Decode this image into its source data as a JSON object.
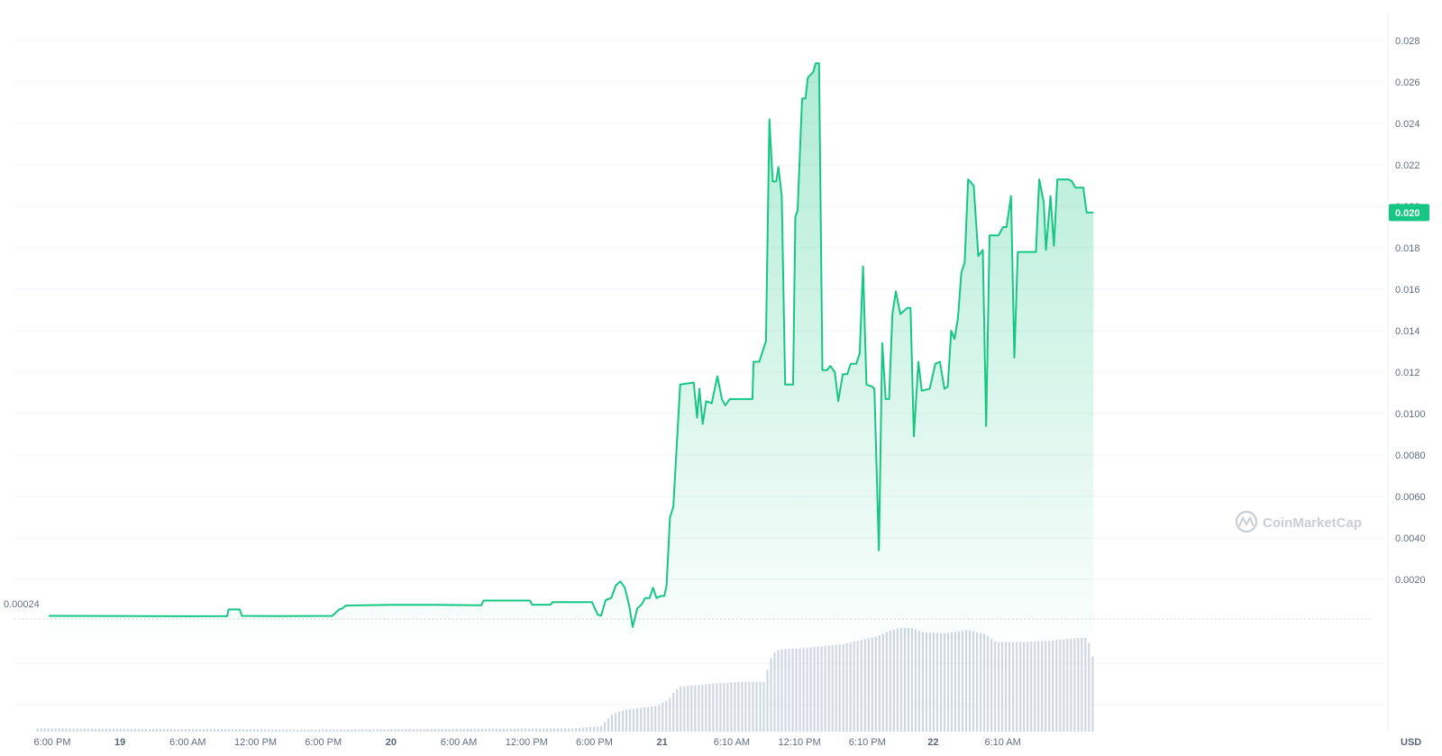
{
  "chart_data": {
    "type": "area",
    "watermark": "CoinMarketCap",
    "currency_label": "USD",
    "baseline_label": "0.00024",
    "current_price_label": "0.020",
    "accent_color": "#16c784",
    "y_ticks": [
      "0.0020",
      "0.0040",
      "0.0060",
      "0.0080",
      "0.0100",
      "0.012",
      "0.014",
      "0.016",
      "0.018",
      "0.020",
      "0.022",
      "0.024",
      "0.026",
      "0.028"
    ],
    "y_tick_values": [
      0.002,
      0.004,
      0.006,
      0.008,
      0.01,
      0.012,
      0.014,
      0.016,
      0.018,
      0.02,
      0.022,
      0.024,
      0.026,
      0.028
    ],
    "ylim": [
      -0.0006,
      0.029
    ],
    "x_ticks": [
      {
        "label": "6:00 PM",
        "t": 0,
        "bold": false
      },
      {
        "label": "19",
        "t": 6,
        "bold": true
      },
      {
        "label": "6:00 AM",
        "t": 12,
        "bold": false
      },
      {
        "label": "12:00 PM",
        "t": 18,
        "bold": false
      },
      {
        "label": "6:00 PM",
        "t": 24,
        "bold": false
      },
      {
        "label": "20",
        "t": 30,
        "bold": true
      },
      {
        "label": "6:00 AM",
        "t": 36,
        "bold": false
      },
      {
        "label": "12:00 PM",
        "t": 42,
        "bold": false
      },
      {
        "label": "6:00 PM",
        "t": 48,
        "bold": false
      },
      {
        "label": "21",
        "t": 54,
        "bold": true
      },
      {
        "label": "6:10 AM",
        "t": 60.17,
        "bold": false
      },
      {
        "label": "12:10 PM",
        "t": 66.17,
        "bold": false
      },
      {
        "label": "6:10 PM",
        "t": 72.17,
        "bold": false
      },
      {
        "label": "22",
        "t": 78,
        "bold": true
      },
      {
        "label": "6:10 AM",
        "t": 84.17,
        "bold": false
      }
    ],
    "x_range_hours": [
      -1.2,
      87.55
    ],
    "price_series": [
      [
        -0.3,
        0.00024
      ],
      [
        8,
        0.00023
      ],
      [
        12,
        0.00022
      ],
      [
        15.5,
        0.00023
      ],
      [
        15.6,
        0.00055
      ],
      [
        16.6,
        0.00055
      ],
      [
        16.8,
        0.00024
      ],
      [
        20,
        0.00023
      ],
      [
        24.8,
        0.00024
      ],
      [
        25.4,
        0.00055
      ],
      [
        25.7,
        0.0006
      ],
      [
        26,
        0.00074
      ],
      [
        30,
        0.00077
      ],
      [
        34,
        0.00077
      ],
      [
        38,
        0.00075
      ],
      [
        38.2,
        0.00098
      ],
      [
        42.3,
        0.00098
      ],
      [
        42.5,
        0.00078
      ],
      [
        44.1,
        0.00078
      ],
      [
        44.3,
        0.0009
      ],
      [
        47.8,
        0.0009
      ],
      [
        48.3,
        0.0003
      ],
      [
        48.6,
        0.00025
      ],
      [
        49,
        0.001
      ],
      [
        49.5,
        0.0011
      ],
      [
        49.9,
        0.0017
      ],
      [
        50.3,
        0.0019
      ],
      [
        50.7,
        0.0016
      ],
      [
        51.1,
        0.0007
      ],
      [
        51.4,
        -0.0003
      ],
      [
        51.8,
        0.0006
      ],
      [
        52.2,
        0.0008
      ],
      [
        52.5,
        0.0011
      ],
      [
        52.9,
        0.0011
      ],
      [
        53.2,
        0.0016
      ],
      [
        53.5,
        0.0011
      ],
      [
        53.9,
        0.0012
      ],
      [
        54.2,
        0.0012
      ],
      [
        54.4,
        0.0017
      ],
      [
        54.7,
        0.005
      ],
      [
        55,
        0.0055
      ],
      [
        55.6,
        0.0114
      ],
      [
        56.8,
        0.0115
      ],
      [
        57.1,
        0.0098
      ],
      [
        57.3,
        0.0112
      ],
      [
        57.6,
        0.0095
      ],
      [
        57.9,
        0.0106
      ],
      [
        58.4,
        0.0105
      ],
      [
        58.9,
        0.0118
      ],
      [
        59.3,
        0.0107
      ],
      [
        59.6,
        0.0104
      ],
      [
        60,
        0.0107
      ],
      [
        62,
        0.0107
      ],
      [
        62.1,
        0.0125
      ],
      [
        62.6,
        0.0125
      ],
      [
        63.2,
        0.0135
      ],
      [
        63.5,
        0.0242
      ],
      [
        63.8,
        0.0212
      ],
      [
        64.1,
        0.0212
      ],
      [
        64.3,
        0.0219
      ],
      [
        64.6,
        0.0205
      ],
      [
        64.9,
        0.0114
      ],
      [
        65.6,
        0.0114
      ],
      [
        65.8,
        0.0195
      ],
      [
        66,
        0.0198
      ],
      [
        66.4,
        0.0252
      ],
      [
        66.7,
        0.0252
      ],
      [
        66.9,
        0.0262
      ],
      [
        67.4,
        0.0265
      ],
      [
        67.6,
        0.0269
      ],
      [
        67.9,
        0.0269
      ],
      [
        68.2,
        0.0121
      ],
      [
        68.6,
        0.0121
      ],
      [
        68.9,
        0.0123
      ],
      [
        69.3,
        0.012
      ],
      [
        69.6,
        0.0106
      ],
      [
        70,
        0.0119
      ],
      [
        70.4,
        0.0119
      ],
      [
        70.7,
        0.0124
      ],
      [
        71.2,
        0.0124
      ],
      [
        71.5,
        0.0129
      ],
      [
        71.8,
        0.0171
      ],
      [
        72.1,
        0.0114
      ],
      [
        72.6,
        0.0113
      ],
      [
        72.8,
        0.0112
      ],
      [
        73.2,
        0.0034
      ],
      [
        73.5,
        0.0134
      ],
      [
        73.8,
        0.0107
      ],
      [
        74.1,
        0.0107
      ],
      [
        74.4,
        0.0148
      ],
      [
        74.7,
        0.0159
      ],
      [
        75.1,
        0.0148
      ],
      [
        75.7,
        0.0151
      ],
      [
        76,
        0.0151
      ],
      [
        76.3,
        0.0089
      ],
      [
        76.7,
        0.0125
      ],
      [
        77,
        0.0111
      ],
      [
        77.7,
        0.0112
      ],
      [
        78.2,
        0.0124
      ],
      [
        78.6,
        0.0125
      ],
      [
        79,
        0.0112
      ],
      [
        79.3,
        0.0113
      ],
      [
        79.6,
        0.014
      ],
      [
        79.9,
        0.0136
      ],
      [
        80.2,
        0.0146
      ],
      [
        80.5,
        0.0168
      ],
      [
        80.8,
        0.0173
      ],
      [
        81.1,
        0.0213
      ],
      [
        81.6,
        0.021
      ],
      [
        82,
        0.0176
      ],
      [
        82.4,
        0.0179
      ],
      [
        82.7,
        0.0094
      ],
      [
        83,
        0.0186
      ],
      [
        83.3,
        0.0186
      ],
      [
        83.8,
        0.0186
      ],
      [
        84.2,
        0.019
      ],
      [
        84.5,
        0.019
      ],
      [
        84.9,
        0.0205
      ],
      [
        85.2,
        0.0127
      ],
      [
        85.5,
        0.0178
      ],
      [
        86.1,
        0.0178
      ],
      [
        86.6,
        0.0178
      ],
      [
        87.1,
        0.0178
      ],
      [
        87.4,
        0.0213
      ],
      [
        87.8,
        0.0202
      ],
      [
        88,
        0.0179
      ],
      [
        88.4,
        0.0205
      ],
      [
        88.7,
        0.0181
      ],
      [
        89,
        0.0213
      ],
      [
        89.5,
        0.0213
      ],
      [
        90,
        0.0213
      ],
      [
        90.3,
        0.0212
      ],
      [
        90.6,
        0.0209
      ],
      [
        91.1,
        0.0209
      ],
      [
        91.3,
        0.0209
      ],
      [
        91.6,
        0.0197
      ],
      [
        92.2,
        0.0197
      ]
    ],
    "volume_series": [
      [
        -1,
        0.03
      ],
      [
        10,
        0.025
      ],
      [
        22,
        0.02
      ],
      [
        34,
        0.025
      ],
      [
        46,
        0.03
      ],
      [
        48.5,
        0.05
      ],
      [
        49.5,
        0.16
      ],
      [
        50.5,
        0.2
      ],
      [
        52,
        0.22
      ],
      [
        53.5,
        0.24
      ],
      [
        54.5,
        0.3
      ],
      [
        55,
        0.37
      ],
      [
        55.5,
        0.42
      ],
      [
        57,
        0.43
      ],
      [
        59,
        0.45
      ],
      [
        61,
        0.46
      ],
      [
        63,
        0.46
      ],
      [
        63.3,
        0.6
      ],
      [
        63.7,
        0.72
      ],
      [
        64.3,
        0.76
      ],
      [
        66,
        0.77
      ],
      [
        68,
        0.79
      ],
      [
        70,
        0.81
      ],
      [
        72,
        0.86
      ],
      [
        73,
        0.88
      ],
      [
        74,
        0.93
      ],
      [
        75,
        0.96
      ],
      [
        76,
        0.96
      ],
      [
        77,
        0.92
      ],
      [
        79,
        0.91
      ],
      [
        81,
        0.94
      ],
      [
        82.5,
        0.9
      ],
      [
        83.5,
        0.83
      ],
      [
        86,
        0.83
      ],
      [
        88,
        0.84
      ],
      [
        90,
        0.86
      ],
      [
        91.5,
        0.87
      ],
      [
        91.9,
        0.78
      ],
      [
        92.2,
        0.6
      ]
    ]
  }
}
